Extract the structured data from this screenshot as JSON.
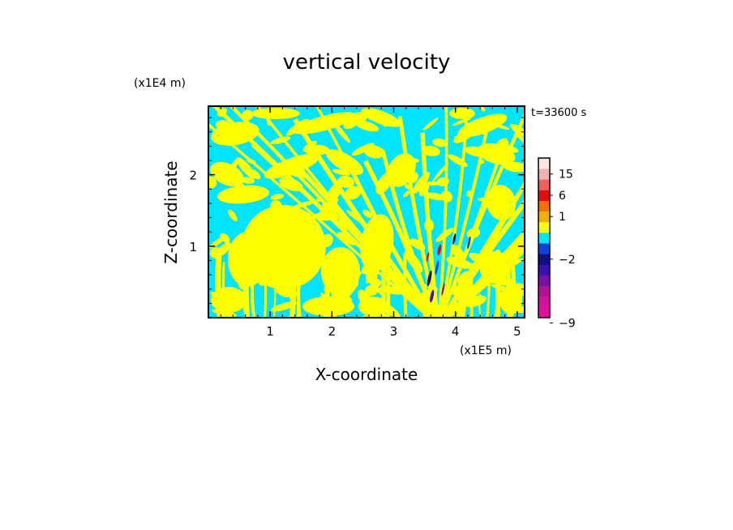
{
  "chart_data": {
    "type": "heatmap",
    "title": "vertical velocity",
    "xlabel": "X-coordinate",
    "ylabel": "Z-coordinate",
    "x_unit": "(x1E5 m)",
    "y_unit": "(x1E4 m)",
    "time_label": "t=33600 s",
    "xlim": [
      0,
      5.12
    ],
    "ylim": [
      0,
      2.96
    ],
    "x_ticks": [
      {
        "value": 1,
        "label": "1"
      },
      {
        "value": 2,
        "label": "2"
      },
      {
        "value": 3,
        "label": "3"
      },
      {
        "value": 4,
        "label": "4"
      },
      {
        "value": 5,
        "label": "5"
      }
    ],
    "y_ticks": [
      {
        "value": 1,
        "label": "1"
      },
      {
        "value": 2,
        "label": "2"
      }
    ],
    "dominant_colors": {
      "positive": "#ffff00",
      "negative": "#00e5ff",
      "frame": "#000000"
    },
    "colorbar": {
      "bands": [
        {
          "value": -12,
          "color": "#e0109a"
        },
        {
          "value": -10,
          "color": "#d4129a"
        },
        {
          "value": -8,
          "color": "#b0129a"
        },
        {
          "value": -6,
          "color": "#7a10a8"
        },
        {
          "value": -4,
          "color": "#3a10b0"
        },
        {
          "value": -2,
          "color": "#101080"
        },
        {
          "value": -1,
          "color": "#1040e0"
        },
        {
          "value": 0,
          "color": "#00e5ff"
        },
        {
          "value": 0.5,
          "color": "#ffff00"
        },
        {
          "value": 1,
          "color": "#f0b000"
        },
        {
          "value": 3,
          "color": "#f07000"
        },
        {
          "value": 6,
          "color": "#e01010"
        },
        {
          "value": 10,
          "color": "#f06060"
        },
        {
          "value": 15,
          "color": "#f4b0b0"
        },
        {
          "value": 20,
          "color": "#fbe6e6"
        }
      ],
      "labels": [
        {
          "value": 15,
          "label": "15"
        },
        {
          "value": 6,
          "label": "6"
        },
        {
          "value": 1,
          "label": "1"
        },
        {
          "value": -2,
          "label": "−2"
        },
        {
          "value": -9,
          "label": "−9"
        }
      ]
    }
  }
}
